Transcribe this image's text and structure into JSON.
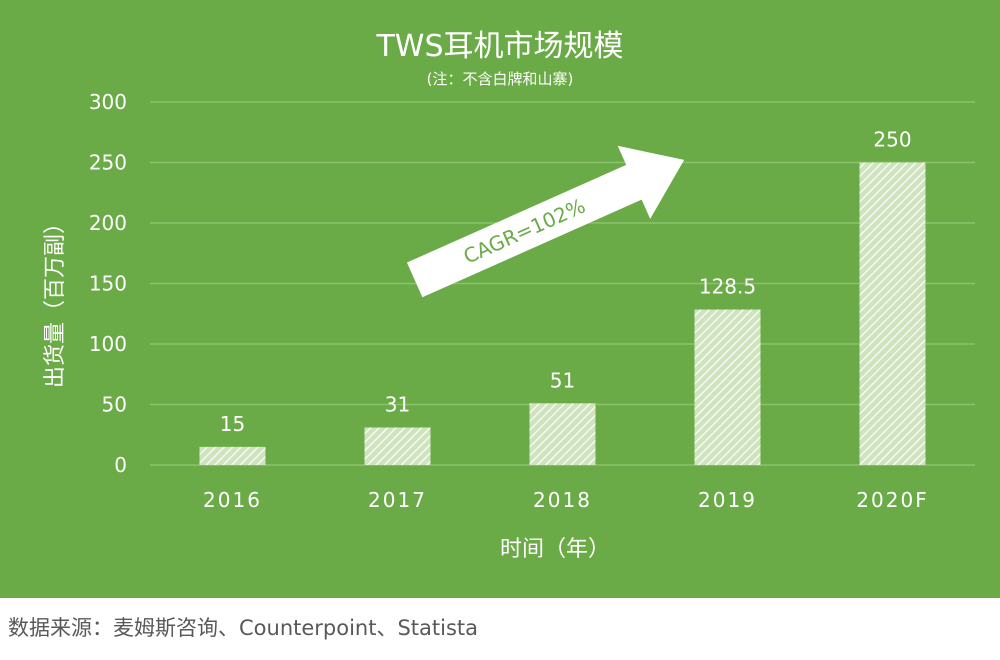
{
  "chart_data": {
    "type": "bar",
    "title": "TWS耳机市场规模",
    "subtitle": "(注：不含白牌和山寨)",
    "xlabel": "时间（年）",
    "ylabel": "出货量（百万副）",
    "categories": [
      "2016",
      "2017",
      "2018",
      "2019",
      "2020F"
    ],
    "values": [
      15,
      31,
      51,
      128.5,
      250
    ],
    "data_labels": [
      "15",
      "31",
      "51",
      "128.5",
      "250"
    ],
    "ylim": [
      0,
      300
    ],
    "yticks": [
      0,
      50,
      100,
      150,
      200,
      250,
      300
    ],
    "grid": true,
    "annotation": "CAGR=102%",
    "colors": {
      "background": "#6aab47",
      "bar_fill": "#cfe3bf",
      "bar_hatch": "#ffffff",
      "text": "#ffffff",
      "grid": "#8cc26d"
    }
  },
  "source": "数据来源：麦姆斯咨询、Counterpoint、Statista"
}
